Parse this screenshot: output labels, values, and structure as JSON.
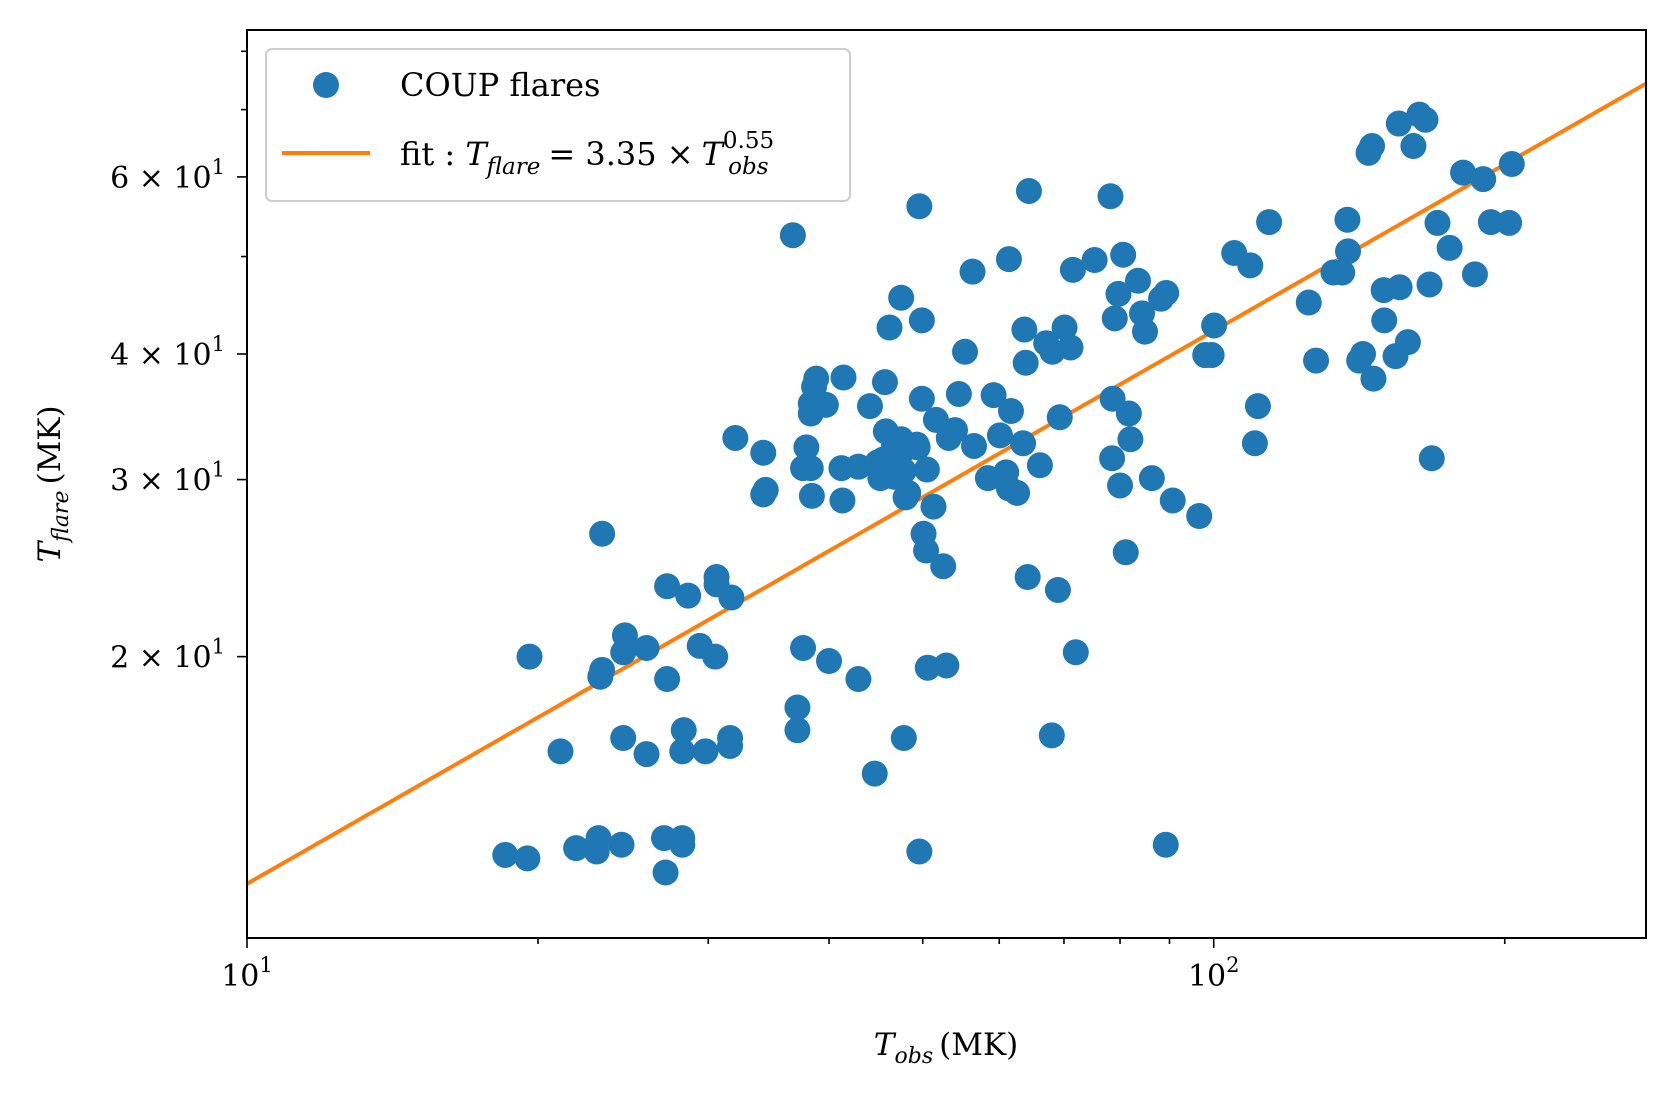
{
  "chart_data": {
    "type": "scatter",
    "title": "",
    "xlabel": {
      "main": "T",
      "sub": "obs",
      "unit": "(MK)"
    },
    "ylabel": {
      "main": "T",
      "sub": "flare",
      "unit": "(MK)"
    },
    "xscale": "log",
    "yscale": "log",
    "xlim": [
      10,
      280
    ],
    "ylim": [
      10.5,
      84
    ],
    "grid": false,
    "legend_placement": "top-left",
    "x_ticks": [
      {
        "value": 10,
        "mant": "10",
        "exp": "1"
      },
      {
        "value": 100,
        "mant": "10",
        "exp": "2"
      }
    ],
    "x_minor_ticks": [
      20,
      30,
      40,
      50,
      60,
      70,
      80,
      90,
      200
    ],
    "y_ticks": [
      {
        "value": 20,
        "mant": "2 × 10",
        "exp": "1"
      },
      {
        "value": 30,
        "mant": "3 × 10",
        "exp": "1"
      },
      {
        "value": 40,
        "mant": "4 × 10",
        "exp": "1"
      },
      {
        "value": 60,
        "mant": "6 × 10",
        "exp": "1"
      }
    ],
    "y_minor_ticks": [
      50,
      70,
      80
    ],
    "series": [
      {
        "name": "COUP flares",
        "kind": "scatter",
        "color": "#1f77b4",
        "points": [
          [
            18.5,
            12.7
          ],
          [
            19.5,
            12.6
          ],
          [
            21.9,
            12.9
          ],
          [
            23.0,
            12.8
          ],
          [
            23.1,
            13.2
          ],
          [
            24.4,
            13.0
          ],
          [
            27.0,
            13.2
          ],
          [
            28.2,
            13.2
          ],
          [
            28.2,
            13.0
          ],
          [
            27.1,
            12.2
          ],
          [
            19.6,
            20.0
          ],
          [
            21.1,
            16.1
          ],
          [
            24.5,
            16.6
          ],
          [
            25.9,
            16.0
          ],
          [
            28.3,
            16.9
          ],
          [
            28.2,
            16.1
          ],
          [
            29.8,
            16.1
          ],
          [
            31.6,
            16.6
          ],
          [
            31.6,
            16.3
          ],
          [
            27.2,
            19.0
          ],
          [
            23.2,
            19.1
          ],
          [
            23.3,
            19.4
          ],
          [
            24.5,
            20.2
          ],
          [
            24.6,
            21.0
          ],
          [
            25.9,
            20.4
          ],
          [
            27.2,
            23.5
          ],
          [
            28.6,
            23.0
          ],
          [
            29.4,
            20.5
          ],
          [
            30.5,
            20.0
          ],
          [
            30.6,
            23.6
          ],
          [
            31.7,
            22.9
          ],
          [
            30.6,
            24.0
          ],
          [
            23.3,
            26.5
          ],
          [
            32.0,
            33.0
          ],
          [
            34.2,
            31.9
          ],
          [
            34.4,
            29.3
          ],
          [
            34.2,
            29.0
          ],
          [
            37.1,
            17.8
          ],
          [
            37.1,
            16.9
          ],
          [
            37.6,
            20.4
          ],
          [
            40.0,
            19.8
          ],
          [
            42.9,
            19.0
          ],
          [
            44.6,
            15.3
          ],
          [
            36.7,
            52.5
          ],
          [
            37.6,
            30.8
          ],
          [
            37.9,
            32.3
          ],
          [
            38.3,
            30.8
          ],
          [
            38.3,
            35.7
          ],
          [
            38.6,
            37.1
          ],
          [
            38.8,
            37.8
          ],
          [
            38.3,
            34.9
          ],
          [
            38.4,
            28.9
          ],
          [
            39.7,
            35.6
          ],
          [
            41.2,
            30.8
          ],
          [
            41.4,
            37.9
          ],
          [
            41.3,
            28.6
          ],
          [
            42.9,
            30.9
          ],
          [
            44.1,
            35.5
          ],
          [
            44.9,
            31.2
          ],
          [
            45.5,
            31.4
          ],
          [
            45.2,
            30.1
          ],
          [
            46.7,
            30.2
          ],
          [
            45.8,
            33.5
          ],
          [
            45.7,
            37.5
          ],
          [
            46.2,
            42.5
          ],
          [
            46.8,
            31.6
          ],
          [
            46.7,
            32.5
          ],
          [
            47.5,
            32.9
          ],
          [
            47.5,
            31.9
          ],
          [
            47.8,
            30.6
          ],
          [
            48.3,
            29.1
          ],
          [
            48.0,
            28.8
          ],
          [
            47.5,
            45.5
          ],
          [
            49.3,
            32.5
          ],
          [
            49.4,
            32.3
          ],
          [
            49.9,
            36.1
          ],
          [
            50.5,
            30.7
          ],
          [
            50.1,
            26.5
          ],
          [
            50.4,
            25.5
          ],
          [
            49.6,
            56.1
          ],
          [
            49.9,
            43.2
          ],
          [
            51.6,
            34.4
          ],
          [
            51.3,
            28.2
          ],
          [
            52.5,
            24.6
          ],
          [
            52.9,
            19.6
          ],
          [
            50.6,
            19.5
          ],
          [
            47.8,
            16.6
          ],
          [
            49.6,
            12.8
          ],
          [
            53.2,
            33.0
          ],
          [
            54.5,
            36.5
          ],
          [
            54.0,
            33.6
          ],
          [
            55.3,
            40.2
          ],
          [
            56.5,
            32.4
          ],
          [
            56.3,
            48.3
          ],
          [
            58.4,
            30.1
          ],
          [
            59.2,
            36.4
          ],
          [
            60.1,
            33.2
          ],
          [
            61.0,
            30.5
          ],
          [
            61.7,
            35.1
          ],
          [
            61.4,
            29.4
          ],
          [
            61.4,
            49.7
          ],
          [
            62.6,
            29.1
          ],
          [
            63.5,
            32.6
          ],
          [
            63.9,
            39.2
          ],
          [
            64.2,
            24.0
          ],
          [
            63.7,
            42.3
          ],
          [
            64.4,
            58.1
          ],
          [
            66.1,
            31.0
          ],
          [
            67.1,
            41.0
          ],
          [
            68.0,
            16.7
          ],
          [
            68.1,
            40.2
          ],
          [
            69.3,
            34.6
          ],
          [
            69.0,
            23.3
          ],
          [
            70.1,
            42.5
          ],
          [
            71.1,
            40.6
          ],
          [
            71.5,
            48.5
          ],
          [
            72.0,
            20.2
          ],
          [
            75.3,
            49.6
          ],
          [
            78.2,
            57.4
          ],
          [
            78.5,
            31.5
          ],
          [
            78.6,
            36.1
          ],
          [
            79.0,
            43.4
          ],
          [
            79.7,
            45.9
          ],
          [
            80.0,
            29.6
          ],
          [
            81.1,
            25.4
          ],
          [
            80.6,
            50.2
          ],
          [
            81.7,
            34.9
          ],
          [
            82.0,
            32.9
          ],
          [
            83.5,
            47.3
          ],
          [
            84.3,
            43.9
          ],
          [
            84.9,
            42.1
          ],
          [
            86.3,
            30.1
          ],
          [
            88.2,
            45.4
          ],
          [
            89.3,
            46.0
          ],
          [
            90.7,
            28.6
          ],
          [
            89.2,
            13.0
          ],
          [
            96.6,
            27.6
          ],
          [
            98.0,
            39.9
          ],
          [
            100.1,
            42.7
          ],
          [
            99.5,
            39.9
          ],
          [
            105.0,
            50.4
          ],
          [
            109.1,
            49.0
          ],
          [
            110.3,
            32.6
          ],
          [
            111.1,
            35.5
          ],
          [
            114.1,
            54.1
          ],
          [
            125.4,
            45.0
          ],
          [
            127.6,
            39.4
          ],
          [
            133.0,
            48.2
          ],
          [
            135.8,
            48.2
          ],
          [
            137.5,
            54.4
          ],
          [
            137.7,
            50.6
          ],
          [
            141.4,
            39.4
          ],
          [
            142.7,
            40.0
          ],
          [
            144.6,
            63.4
          ],
          [
            145.8,
            64.4
          ],
          [
            146.3,
            37.8
          ],
          [
            149.9,
            46.3
          ],
          [
            150.1,
            43.2
          ],
          [
            154.2,
            39.8
          ],
          [
            155.4,
            67.8
          ],
          [
            155.7,
            46.6
          ],
          [
            158.8,
            41.1
          ],
          [
            160.9,
            64.4
          ],
          [
            163.2,
            69.2
          ],
          [
            165.6,
            68.4
          ],
          [
            167.2,
            46.9
          ],
          [
            168.1,
            31.5
          ],
          [
            170.4,
            54.0
          ],
          [
            175.4,
            51.0
          ],
          [
            181.1,
            60.6
          ],
          [
            186.3,
            48.0
          ],
          [
            190.0,
            59.7
          ],
          [
            193.5,
            54.1
          ],
          [
            202.1,
            54.0
          ],
          [
            203.4,
            61.8
          ]
        ]
      },
      {
        "name": "fit : T_flare = 3.35 × T_obs^0.55",
        "kind": "line",
        "color": "#ff7f0e",
        "coef": 3.35,
        "exponent": 0.55,
        "x": [
          10,
          280
        ]
      }
    ],
    "legend": {
      "scatter_label": "COUP flares",
      "fit_prefix": "fit : ",
      "fit_T": "T",
      "fit_sub_flare": "flare",
      "fit_eq": "= 3.35 ×",
      "fit_T2": "T",
      "fit_sup": "0.55",
      "fit_sub_obs": "obs"
    }
  }
}
